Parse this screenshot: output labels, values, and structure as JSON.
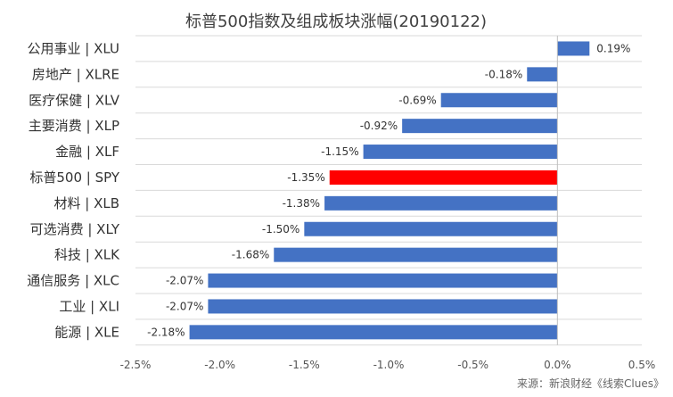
{
  "chart_data": {
    "type": "bar",
    "orientation": "horizontal",
    "title": "标普500指数及组成板块涨幅(20190122)",
    "source": "来源：新浪财经《线索Clues》",
    "categories": [
      "公用事业 | XLU",
      "房地产 | XLRE",
      "医疗保健 | XLV",
      "主要消费 | XLP",
      "金融 | XLF",
      "标普500 | SPY",
      "材料 | XLB",
      "可选消费 | XLY",
      "科技 | XLK",
      "通信服务 | XLC",
      "工业 | XLI",
      "能源 | XLE"
    ],
    "values": [
      0.19,
      -0.18,
      -0.69,
      -0.92,
      -1.15,
      -1.35,
      -1.38,
      -1.5,
      -1.68,
      -2.07,
      -2.07,
      -2.18
    ],
    "value_labels": [
      "0.19%",
      "-0.18%",
      "-0.69%",
      "-0.92%",
      "-1.15%",
      "-1.35%",
      "-1.38%",
      "-1.50%",
      "-1.68%",
      "-2.07%",
      "-2.07%",
      "-2.18%"
    ],
    "xlim": [
      -2.5,
      0.5
    ],
    "x_ticks": [
      -2.5,
      -2.0,
      -1.5,
      -1.0,
      -0.5,
      0.0,
      0.5
    ],
    "x_tick_labels": [
      "-2.5%",
      "-2.0%",
      "-1.5%",
      "-1.0%",
      "-0.5%",
      "0.0%",
      "0.5%"
    ],
    "colors": {
      "default_bar": "#4472C4",
      "highlight_bar": "#FF0000",
      "highlight_category": "标普500 | SPY",
      "grid": "#D9D9D9",
      "axis": "#BFBFBF"
    },
    "grid": true,
    "legend": "none"
  }
}
